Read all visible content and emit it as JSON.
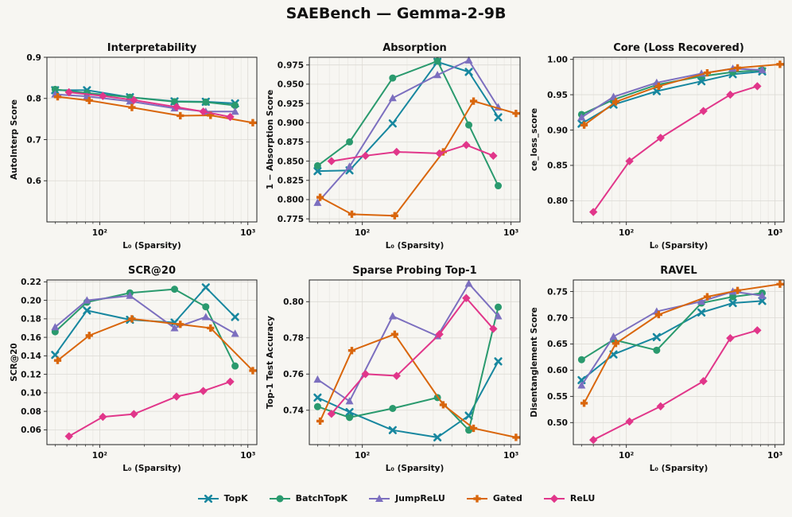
{
  "suptitle": "SAEBench — Gemma-2-9B",
  "series_styles": [
    {
      "name": "TopK",
      "color": "#17879f",
      "marker": "x"
    },
    {
      "name": "BatchTopK",
      "color": "#2a9a6e",
      "marker": "o"
    },
    {
      "name": "JumpReLU",
      "color": "#7c6fbf",
      "marker": "^"
    },
    {
      "name": "Gated",
      "color": "#d9660c",
      "marker": "P"
    },
    {
      "name": "ReLU",
      "color": "#e1368a",
      "marker": "D"
    }
  ],
  "chart_data": [
    {
      "type": "line",
      "title": "Interpretability",
      "xlabel": "L₀ (Sparsity)",
      "ylabel": "AutoInterp Score",
      "xscale": "log",
      "xlim": [
        44,
        1150
      ],
      "ylim": [
        0.5,
        0.9
      ],
      "xticks": [
        {
          "v": 100,
          "label": "10²"
        },
        {
          "v": 1000,
          "label": "10³"
        }
      ],
      "yticks": [
        0.6,
        0.7,
        0.8,
        0.9
      ],
      "series": [
        {
          "name": "TopK",
          "x": [
            50,
            82,
            160,
            320,
            520,
            820
          ],
          "y": [
            0.82,
            0.82,
            0.803,
            0.793,
            0.792,
            0.788
          ]
        },
        {
          "name": "BatchTopK",
          "x": [
            50,
            82,
            160,
            320,
            520,
            820
          ],
          "y": [
            0.822,
            0.813,
            0.803,
            0.792,
            0.791,
            0.783
          ]
        },
        {
          "name": "JumpReLU",
          "x": [
            50,
            82,
            160,
            320,
            520,
            820
          ],
          "y": [
            0.81,
            0.805,
            0.793,
            0.776,
            0.768,
            0.768
          ]
        },
        {
          "name": "Gated",
          "x": [
            52,
            85,
            165,
            350,
            560,
            1080
          ],
          "y": [
            0.804,
            0.795,
            0.778,
            0.758,
            0.759,
            0.741
          ]
        },
        {
          "name": "ReLU",
          "x": [
            62,
            105,
            170,
            330,
            500,
            760
          ],
          "y": [
            0.815,
            0.806,
            0.796,
            0.779,
            0.768,
            0.755
          ]
        }
      ]
    },
    {
      "type": "line",
      "title": "Absorption",
      "xlabel": "L₀ (Sparsity)",
      "ylabel": "1 − Absorption Score",
      "xscale": "log",
      "xlim": [
        44,
        1150
      ],
      "ylim": [
        0.771,
        0.985
      ],
      "xticks": [
        {
          "v": 100,
          "label": "10²"
        },
        {
          "v": 1000,
          "label": "10³"
        }
      ],
      "yticks": [
        0.775,
        0.8,
        0.825,
        0.85,
        0.875,
        0.9,
        0.925,
        0.95,
        0.975
      ],
      "series": [
        {
          "name": "TopK",
          "x": [
            50,
            82,
            160,
            320,
            520,
            820
          ],
          "y": [
            0.837,
            0.838,
            0.899,
            0.979,
            0.966,
            0.907
          ]
        },
        {
          "name": "BatchTopK",
          "x": [
            50,
            82,
            160,
            320,
            520,
            820
          ],
          "y": [
            0.844,
            0.875,
            0.958,
            0.98,
            0.897,
            0.818
          ]
        },
        {
          "name": "JumpReLU",
          "x": [
            50,
            82,
            160,
            320,
            520,
            820
          ],
          "y": [
            0.796,
            0.843,
            0.932,
            0.962,
            0.981,
            0.92
          ]
        },
        {
          "name": "Gated",
          "x": [
            52,
            85,
            165,
            350,
            560,
            1080
          ],
          "y": [
            0.803,
            0.781,
            0.779,
            0.862,
            0.928,
            0.912
          ]
        },
        {
          "name": "ReLU",
          "x": [
            62,
            105,
            170,
            330,
            500,
            760
          ],
          "y": [
            0.85,
            0.857,
            0.862,
            0.86,
            0.871,
            0.857
          ]
        }
      ]
    },
    {
      "type": "line",
      "title": "Core (Loss Recovered)",
      "xlabel": "L₀ (Sparsity)",
      "ylabel": "ce_loss_score",
      "xscale": "log",
      "xlim": [
        44,
        1150
      ],
      "ylim": [
        0.77,
        1.003
      ],
      "xticks": [
        {
          "v": 100,
          "label": "10²"
        },
        {
          "v": 1000,
          "label": "10³"
        }
      ],
      "yticks": [
        0.8,
        0.85,
        0.9,
        0.95,
        1.0
      ],
      "series": [
        {
          "name": "TopK",
          "x": [
            50,
            82,
            160,
            320,
            520,
            820
          ],
          "y": [
            0.909,
            0.936,
            0.955,
            0.969,
            0.979,
            0.983
          ]
        },
        {
          "name": "BatchTopK",
          "x": [
            50,
            82,
            160,
            320,
            520,
            820
          ],
          "y": [
            0.922,
            0.943,
            0.964,
            0.976,
            0.982,
            0.985
          ]
        },
        {
          "name": "JumpReLU",
          "x": [
            50,
            82,
            160,
            320,
            520,
            820
          ],
          "y": [
            0.918,
            0.947,
            0.967,
            0.98,
            0.987,
            0.985
          ]
        },
        {
          "name": "Gated",
          "x": [
            52,
            85,
            165,
            350,
            560,
            1080
          ],
          "y": [
            0.907,
            0.94,
            0.962,
            0.981,
            0.988,
            0.993
          ]
        },
        {
          "name": "ReLU",
          "x": [
            60,
            105,
            170,
            330,
            500,
            760
          ],
          "y": [
            0.784,
            0.856,
            0.889,
            0.927,
            0.95,
            0.962
          ]
        }
      ]
    },
    {
      "type": "line",
      "title": "SCR@20",
      "xlabel": "L₀ (Sparsity)",
      "ylabel": "SCR@20",
      "xscale": "log",
      "xlim": [
        44,
        1150
      ],
      "ylim": [
        0.044,
        0.222
      ],
      "xticks": [
        {
          "v": 100,
          "label": "10²"
        },
        {
          "v": 1000,
          "label": "10³"
        }
      ],
      "yticks": [
        0.06,
        0.08,
        0.1,
        0.12,
        0.14,
        0.16,
        0.18,
        0.2,
        0.22
      ],
      "series": [
        {
          "name": "TopK",
          "x": [
            50,
            82,
            160,
            320,
            520,
            820
          ],
          "y": [
            0.141,
            0.189,
            0.179,
            0.176,
            0.214,
            0.182
          ]
        },
        {
          "name": "BatchTopK",
          "x": [
            50,
            82,
            160,
            320,
            520,
            820
          ],
          "y": [
            0.166,
            0.198,
            0.208,
            0.212,
            0.193,
            0.129
          ]
        },
        {
          "name": "JumpReLU",
          "x": [
            50,
            82,
            160,
            320,
            520,
            820
          ],
          "y": [
            0.171,
            0.2,
            0.205,
            0.17,
            0.182,
            0.164
          ]
        },
        {
          "name": "Gated",
          "x": [
            52,
            85,
            165,
            350,
            560,
            1080
          ],
          "y": [
            0.135,
            0.162,
            0.18,
            0.174,
            0.17,
            0.124
          ]
        },
        {
          "name": "ReLU",
          "x": [
            62,
            105,
            170,
            330,
            500,
            760
          ],
          "y": [
            0.053,
            0.074,
            0.077,
            0.096,
            0.102,
            0.112
          ]
        }
      ]
    },
    {
      "type": "line",
      "title": "Sparse Probing Top-1",
      "xlabel": "L₀ (Sparsity)",
      "ylabel": "Top-1 Test Accuracy",
      "xscale": "log",
      "xlim": [
        44,
        1150
      ],
      "ylim": [
        0.721,
        0.812
      ],
      "xticks": [
        {
          "v": 100,
          "label": "10²"
        },
        {
          "v": 1000,
          "label": "10³"
        }
      ],
      "yticks": [
        0.74,
        0.76,
        0.78,
        0.8
      ],
      "series": [
        {
          "name": "TopK",
          "x": [
            50,
            82,
            160,
            320,
            520,
            820
          ],
          "y": [
            0.747,
            0.739,
            0.729,
            0.725,
            0.737,
            0.767
          ]
        },
        {
          "name": "BatchTopK",
          "x": [
            50,
            82,
            160,
            320,
            520,
            820
          ],
          "y": [
            0.742,
            0.736,
            0.741,
            0.747,
            0.729,
            0.797
          ]
        },
        {
          "name": "JumpReLU",
          "x": [
            50,
            82,
            160,
            320,
            520,
            820
          ],
          "y": [
            0.757,
            0.745,
            0.792,
            0.781,
            0.81,
            0.792
          ]
        },
        {
          "name": "Gated",
          "x": [
            52,
            85,
            165,
            350,
            560,
            1080
          ],
          "y": [
            0.734,
            0.773,
            0.782,
            0.743,
            0.73,
            0.725
          ]
        },
        {
          "name": "ReLU",
          "x": [
            62,
            105,
            170,
            330,
            500,
            760
          ],
          "y": [
            0.738,
            0.76,
            0.759,
            0.782,
            0.802,
            0.785
          ]
        }
      ]
    },
    {
      "type": "line",
      "title": "RAVEL",
      "xlabel": "L₀ (Sparsity)",
      "ylabel": "Disentanglement Score",
      "xscale": "log",
      "xlim": [
        44,
        1150
      ],
      "ylim": [
        0.458,
        0.772
      ],
      "xticks": [
        {
          "v": 100,
          "label": "10²"
        },
        {
          "v": 1000,
          "label": "10³"
        }
      ],
      "yticks": [
        0.5,
        0.55,
        0.6,
        0.65,
        0.7,
        0.75
      ],
      "series": [
        {
          "name": "TopK",
          "x": [
            50,
            82,
            160,
            320,
            520,
            820
          ],
          "y": [
            0.581,
            0.63,
            0.663,
            0.71,
            0.728,
            0.732
          ]
        },
        {
          "name": "BatchTopK",
          "x": [
            50,
            82,
            160,
            320,
            520,
            820
          ],
          "y": [
            0.62,
            0.658,
            0.638,
            0.728,
            0.74,
            0.747
          ]
        },
        {
          "name": "JumpReLU",
          "x": [
            50,
            82,
            160,
            320,
            520,
            820
          ],
          "y": [
            0.571,
            0.664,
            0.712,
            0.731,
            0.75,
            0.742
          ]
        },
        {
          "name": "Gated",
          "x": [
            52,
            85,
            165,
            350,
            560,
            1080
          ],
          "y": [
            0.537,
            0.651,
            0.706,
            0.74,
            0.752,
            0.764
          ]
        },
        {
          "name": "ReLU",
          "x": [
            60,
            105,
            170,
            330,
            500,
            760
          ],
          "y": [
            0.467,
            0.502,
            0.531,
            0.579,
            0.661,
            0.676
          ]
        }
      ]
    }
  ]
}
